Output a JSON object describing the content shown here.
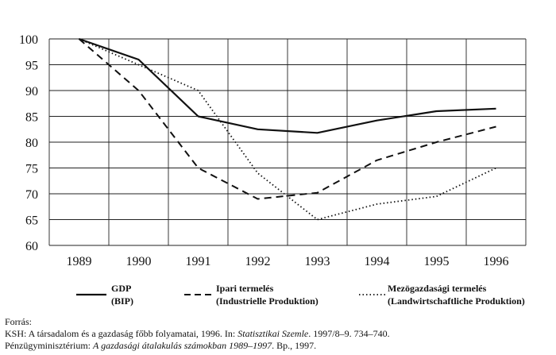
{
  "chart_data": {
    "type": "line",
    "x": [
      "1989",
      "1990",
      "1991",
      "1992",
      "1993",
      "1994",
      "1995",
      "1996"
    ],
    "ylim": [
      60,
      100
    ],
    "yticks": [
      60,
      65,
      70,
      75,
      80,
      85,
      90,
      95,
      100
    ],
    "grid": true,
    "legend_position": "bottom",
    "series": [
      {
        "name": "GDP",
        "name_sub": "(BIP)",
        "style": "solid",
        "color": "#111111",
        "values": [
          100,
          96,
          85,
          82.5,
          81.8,
          84.2,
          86,
          86.5
        ]
      },
      {
        "name": "Ipari termelés",
        "name_sub": "(Industrielle Produktion)",
        "style": "dashed",
        "color": "#111111",
        "values": [
          100,
          90,
          75,
          69,
          70.2,
          76.5,
          80,
          83
        ]
      },
      {
        "name": "Mezögazdasági termelés",
        "name_sub": "(Landwirtschaftliche Produktion)",
        "style": "dotted",
        "color": "#111111",
        "values": [
          100,
          95,
          90,
          74,
          65,
          68,
          69.5,
          75
        ]
      }
    ]
  },
  "source": {
    "heading": "Forrás:",
    "line1_prefix": "KSH: A társadalom és a gazdaság főbb folyamatai, 1996. In: ",
    "line1_italic": "Statisztikai Szemle",
    "line1_suffix": ". 1997/8–9. 734–740.",
    "line2_prefix": "Pénzügyminisztérium: ",
    "line2_italic": "A gazdasági átalakulás számokban 1989–1997",
    "line2_suffix": ". Bp., 1997."
  }
}
